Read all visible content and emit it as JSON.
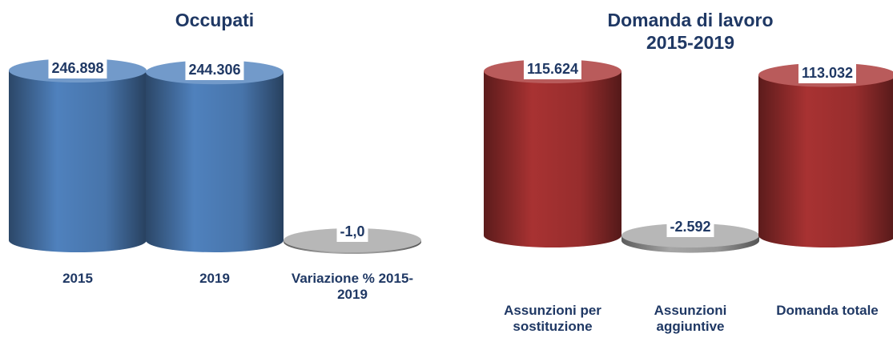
{
  "chart_data": [
    {
      "type": "cylinder",
      "title": "Occupati",
      "categories": [
        "2015",
        "2019",
        "Variazione % 2015-2019"
      ],
      "values": [
        246898,
        244306,
        -1.0
      ],
      "value_labels": [
        "246.898",
        "244.306",
        "-1,0"
      ],
      "colors": [
        "#4f81bd",
        "#4f81bd",
        "#a6a6a6"
      ]
    },
    {
      "type": "cylinder",
      "title": "Domanda di lavoro 2015-2019",
      "categories": [
        "Assunzioni per sostituzione",
        "Assunzioni aggiuntive",
        "Domanda totale"
      ],
      "values": [
        115624,
        -2592,
        113032
      ],
      "value_labels": [
        "115.624",
        "-2.592",
        "113.032"
      ],
      "colors": [
        "#a83232",
        "#a6a6a6",
        "#a83232"
      ]
    }
  ]
}
